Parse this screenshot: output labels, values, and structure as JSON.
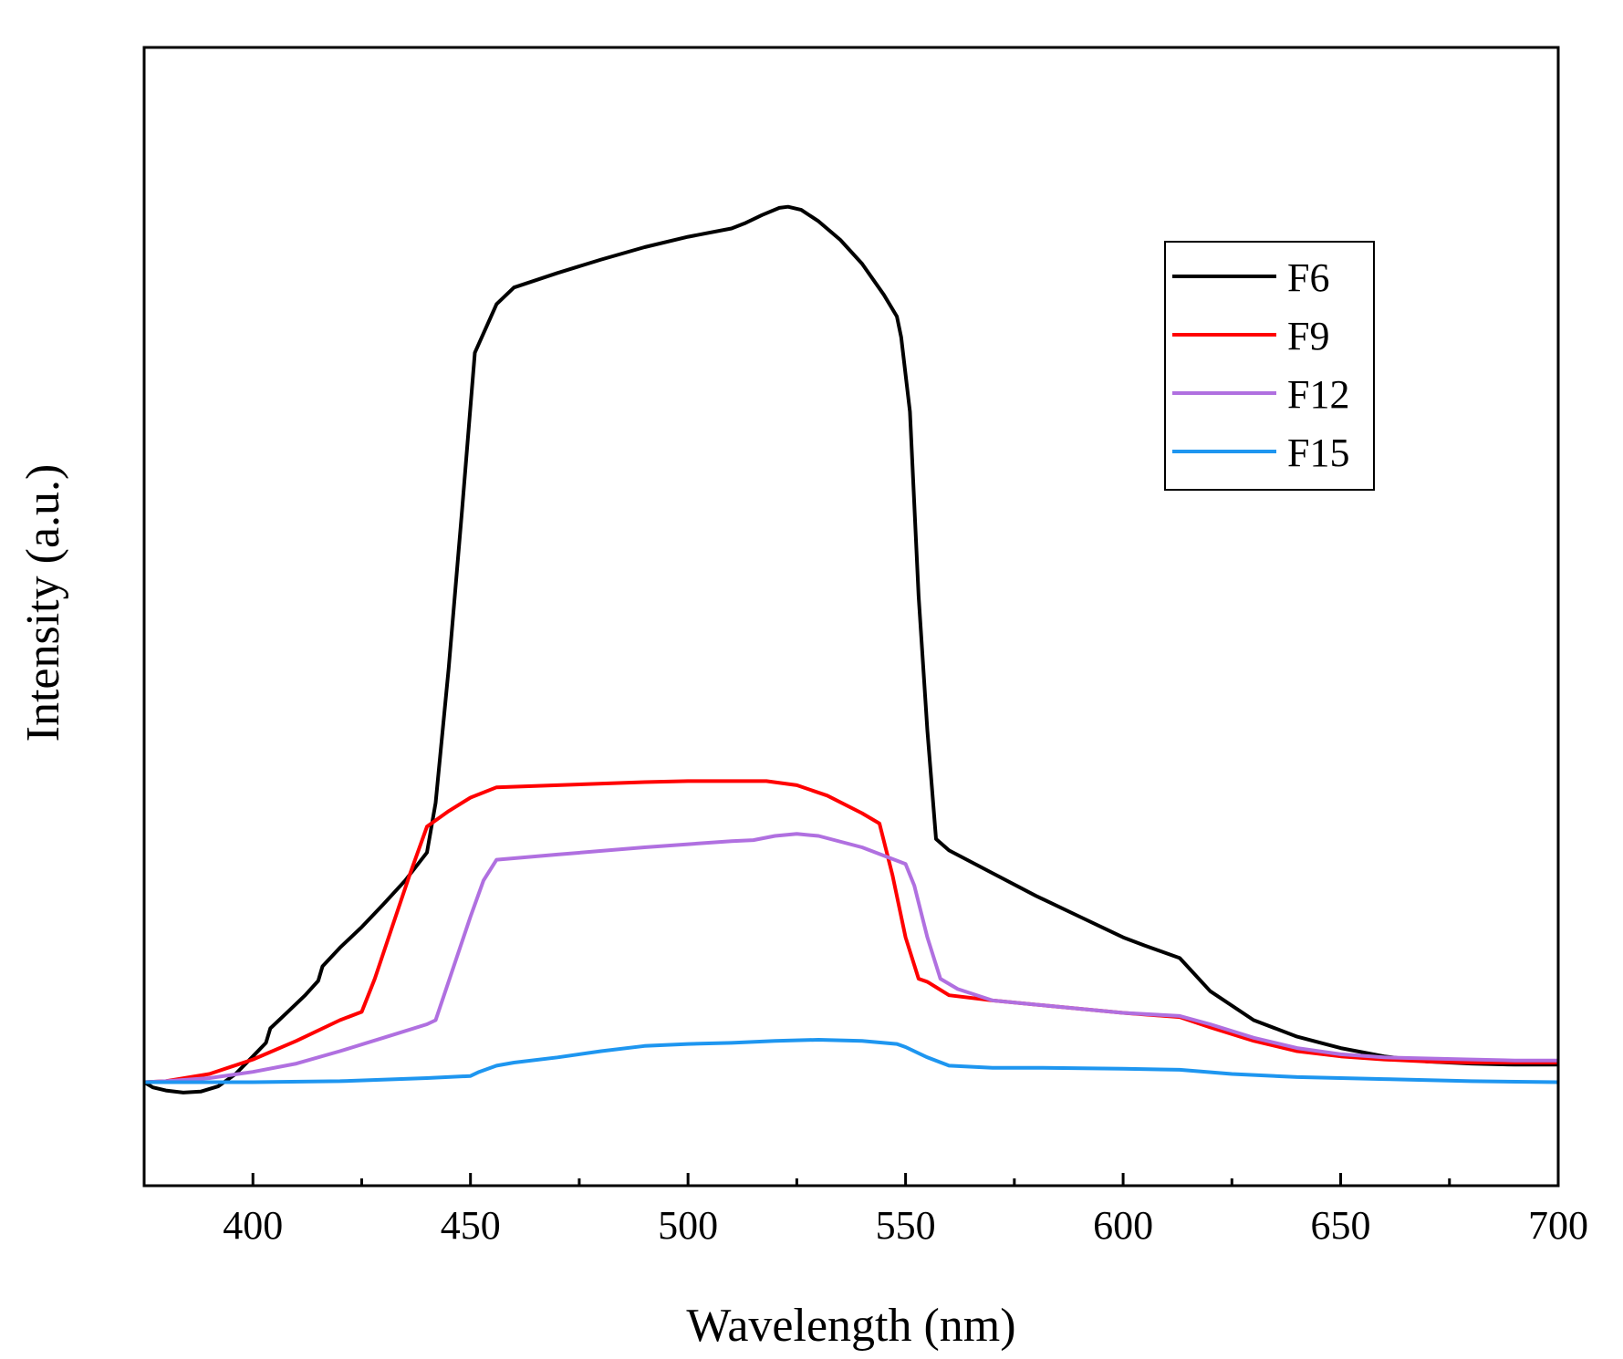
{
  "chart_data": {
    "type": "line",
    "title": "",
    "xlabel": "Wavelength (nm)",
    "ylabel": "Intensity (a.u.)",
    "xlim": [
      375,
      700
    ],
    "ylim": [
      -0.1,
      1.0
    ],
    "x_ticks": [
      400,
      450,
      500,
      550,
      600,
      650,
      700
    ],
    "x_tick_labels": [
      "400",
      "450",
      "500",
      "550",
      "600",
      "650",
      "700"
    ],
    "y_ticks_shown": false,
    "grid": false,
    "legend_position": "top-right",
    "series": [
      {
        "name": "F6",
        "color": "#000000",
        "x": [
          375,
          377,
          380,
          384,
          388,
          392,
          396,
          400,
          403,
          404,
          408,
          412,
          415,
          416,
          420,
          425,
          430,
          435,
          440,
          442,
          445,
          448,
          451,
          456,
          460,
          470,
          480,
          490,
          500,
          510,
          513,
          517,
          521,
          523,
          526,
          530,
          535,
          540,
          545,
          548,
          549,
          551,
          553,
          555,
          557,
          560,
          570,
          580,
          590,
          600,
          605,
          613,
          620,
          630,
          640,
          650,
          660,
          670,
          680,
          690,
          700
        ],
        "y": [
          0.0,
          -0.005,
          -0.008,
          -0.01,
          -0.009,
          -0.004,
          0.008,
          0.025,
          0.038,
          0.052,
          0.068,
          0.084,
          0.098,
          0.112,
          0.13,
          0.15,
          0.172,
          0.195,
          0.222,
          0.27,
          0.4,
          0.55,
          0.705,
          0.752,
          0.768,
          0.782,
          0.795,
          0.807,
          0.817,
          0.825,
          0.83,
          0.838,
          0.845,
          0.846,
          0.843,
          0.832,
          0.814,
          0.791,
          0.761,
          0.74,
          0.72,
          0.648,
          0.47,
          0.34,
          0.235,
          0.224,
          0.202,
          0.18,
          0.16,
          0.14,
          0.132,
          0.12,
          0.088,
          0.06,
          0.044,
          0.033,
          0.025,
          0.02,
          0.018,
          0.017,
          0.017
        ]
      },
      {
        "name": "F9",
        "color": "#ff0000",
        "x": [
          375,
          380,
          390,
          400,
          410,
          420,
          425,
          428,
          432,
          436,
          440,
          445,
          450,
          456,
          470,
          490,
          500,
          510,
          518,
          525,
          532,
          540,
          544,
          547,
          550,
          553,
          555,
          560,
          570,
          580,
          590,
          600,
          613,
          620,
          630,
          640,
          650,
          660,
          670,
          680,
          690,
          700
        ],
        "y": [
          0.0,
          0.001,
          0.008,
          0.022,
          0.04,
          0.06,
          0.068,
          0.1,
          0.15,
          0.2,
          0.247,
          0.262,
          0.275,
          0.285,
          0.287,
          0.29,
          0.291,
          0.291,
          0.291,
          0.287,
          0.277,
          0.26,
          0.25,
          0.2,
          0.14,
          0.1,
          0.097,
          0.084,
          0.079,
          0.075,
          0.071,
          0.067,
          0.063,
          0.053,
          0.04,
          0.03,
          0.025,
          0.022,
          0.02,
          0.019,
          0.019,
          0.019
        ]
      },
      {
        "name": "F12",
        "color": "#b070e0",
        "x": [
          375,
          380,
          390,
          400,
          410,
          420,
          430,
          440,
          442,
          446,
          450,
          453,
          456,
          470,
          490,
          510,
          515,
          520,
          525,
          530,
          540,
          550,
          552,
          555,
          558,
          562,
          570,
          580,
          590,
          600,
          613,
          620,
          630,
          640,
          650,
          660,
          670,
          680,
          690,
          700
        ],
        "y": [
          0.0,
          0.001,
          0.004,
          0.01,
          0.018,
          0.03,
          0.043,
          0.056,
          0.06,
          0.11,
          0.16,
          0.195,
          0.215,
          0.22,
          0.227,
          0.233,
          0.234,
          0.238,
          0.24,
          0.238,
          0.227,
          0.211,
          0.19,
          0.14,
          0.1,
          0.09,
          0.079,
          0.075,
          0.071,
          0.067,
          0.064,
          0.056,
          0.043,
          0.033,
          0.027,
          0.024,
          0.023,
          0.022,
          0.021,
          0.021
        ]
      },
      {
        "name": "F15",
        "color": "#1e96f0",
        "x": [
          375,
          390,
          400,
          420,
          440,
          450,
          452,
          456,
          460,
          470,
          480,
          490,
          500,
          510,
          520,
          530,
          540,
          548,
          550,
          555,
          560,
          570,
          580,
          600,
          613,
          625,
          640,
          660,
          680,
          700
        ],
        "y": [
          0.0,
          0.0,
          0.0,
          0.001,
          0.004,
          0.006,
          0.01,
          0.016,
          0.019,
          0.024,
          0.03,
          0.035,
          0.037,
          0.038,
          0.04,
          0.041,
          0.04,
          0.037,
          0.034,
          0.024,
          0.016,
          0.014,
          0.014,
          0.013,
          0.012,
          0.008,
          0.005,
          0.003,
          0.001,
          0.0
        ]
      }
    ]
  }
}
